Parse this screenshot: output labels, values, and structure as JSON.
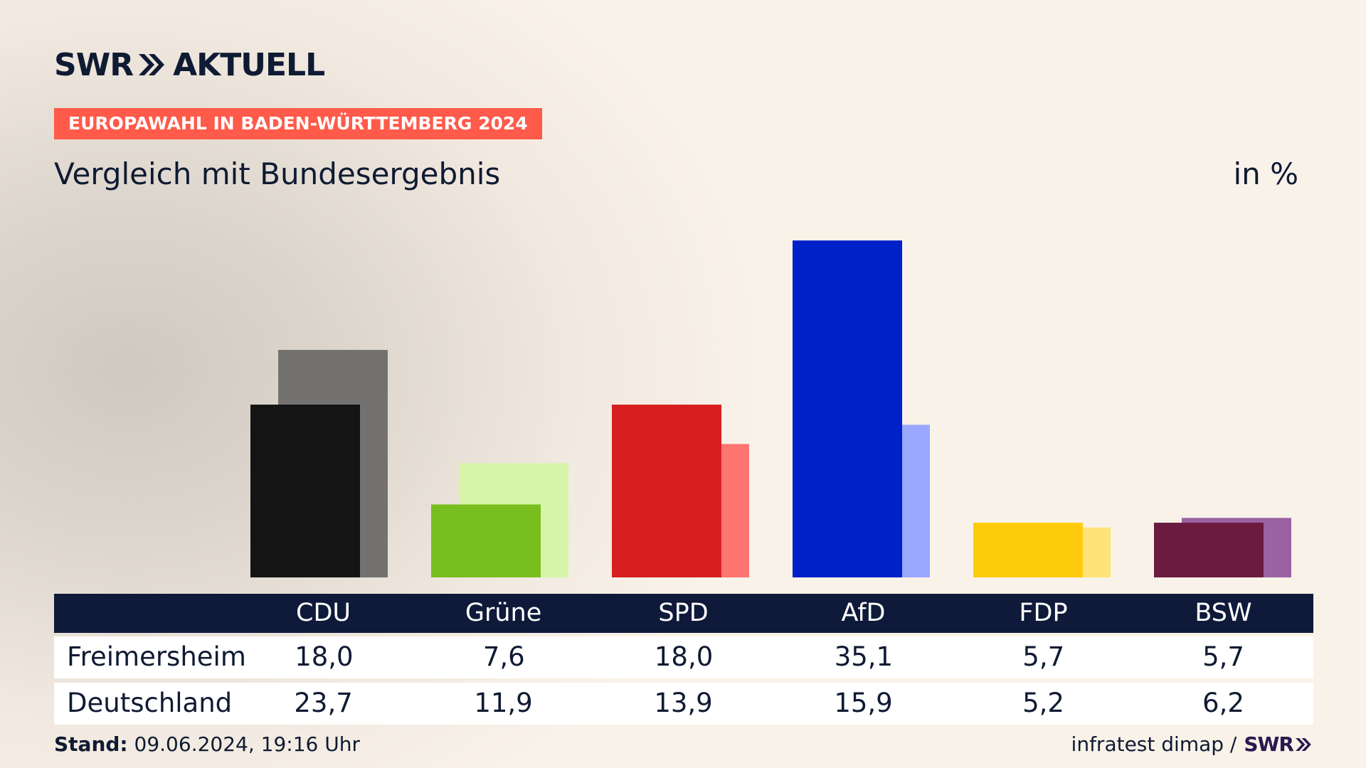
{
  "brand": {
    "swr": "SWR",
    "aktuell": "AKTUELL"
  },
  "tag": "EUROPAWAHL IN BADEN-WÜRTTEMBERG 2024",
  "subtitle": "Vergleich mit Bundesergebnis",
  "unit": "in %",
  "chart_data": {
    "type": "bar",
    "categories": [
      "CDU",
      "Grüne",
      "SPD",
      "AfD",
      "FDP",
      "BSW"
    ],
    "series": [
      {
        "name": "Freimersheim",
        "values": [
          18.0,
          7.6,
          18.0,
          35.1,
          5.7,
          5.7
        ],
        "colors": [
          "#141414",
          "#78be1e",
          "#d71f1f",
          "#0021c8",
          "#ffcc0d",
          "#6b1a40"
        ]
      },
      {
        "name": "Deutschland",
        "values": [
          23.7,
          11.9,
          13.9,
          15.9,
          5.2,
          6.2
        ],
        "colors": [
          "#737270",
          "#d7f5a8",
          "#ff7570",
          "#9aa7ff",
          "#ffe27a",
          "#9a62a0"
        ]
      }
    ],
    "ylim": [
      0,
      36
    ]
  },
  "table": {
    "headers": [
      "CDU",
      "Grüne",
      "SPD",
      "AfD",
      "FDP",
      "BSW"
    ],
    "rows": [
      {
        "label": "Freimersheim",
        "values": [
          "18,0",
          "7,6",
          "18,0",
          "35,1",
          "5,7",
          "5,7"
        ]
      },
      {
        "label": "Deutschland",
        "values": [
          "23,7",
          "11,9",
          "13,9",
          "15,9",
          "5,2",
          "6,2"
        ]
      }
    ]
  },
  "footer": {
    "stand_label": "Stand:",
    "stand_value": "09.06.2024, 19:16 Uhr",
    "source": "infratest dimap /",
    "source_brand": "SWR"
  }
}
